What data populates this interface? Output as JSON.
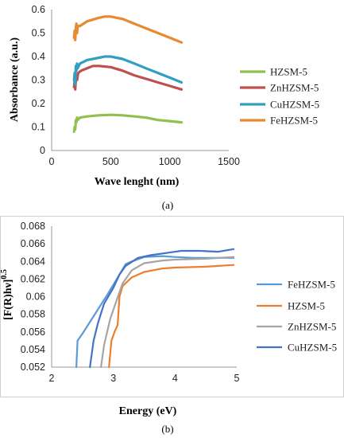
{
  "chart_data": [
    {
      "type": "line",
      "caption": "(a)",
      "xlabel": "Wave lenght (nm)",
      "ylabel": "Absorbance (a.u.)",
      "xlim": [
        0,
        1500
      ],
      "ylim": [
        0,
        0.6
      ],
      "xticks": [
        "0",
        "500",
        "1000",
        "1500"
      ],
      "yticks": [
        "0",
        "0.1",
        "0.2",
        "0.3",
        "0.4",
        "0.5",
        "0.6"
      ],
      "grid": false,
      "legend_position": "right",
      "series": [
        {
          "name": "HZSM-5",
          "color": "#92c050",
          "points": [
            [
              190,
              0.08
            ],
            [
              195,
              0.1
            ],
            [
              200,
              0.09
            ],
            [
              205,
              0.13
            ],
            [
              210,
              0.12
            ],
            [
              215,
              0.14
            ],
            [
              220,
              0.13
            ],
            [
              240,
              0.14
            ],
            [
              300,
              0.145
            ],
            [
              400,
              0.15
            ],
            [
              500,
              0.152
            ],
            [
              600,
              0.15
            ],
            [
              700,
              0.145
            ],
            [
              800,
              0.14
            ],
            [
              900,
              0.13
            ],
            [
              1000,
              0.125
            ],
            [
              1100,
              0.12
            ]
          ]
        },
        {
          "name": "ZnHZSM-5",
          "color": "#c0504d",
          "points": [
            [
              190,
              0.27
            ],
            [
              195,
              0.3
            ],
            [
              200,
              0.26
            ],
            [
              205,
              0.3
            ],
            [
              210,
              0.32
            ],
            [
              215,
              0.3
            ],
            [
              225,
              0.33
            ],
            [
              250,
              0.34
            ],
            [
              300,
              0.35
            ],
            [
              350,
              0.36
            ],
            [
              400,
              0.36
            ],
            [
              500,
              0.355
            ],
            [
              600,
              0.34
            ],
            [
              700,
              0.32
            ],
            [
              800,
              0.305
            ],
            [
              900,
              0.29
            ],
            [
              1000,
              0.275
            ],
            [
              1100,
              0.26
            ]
          ]
        },
        {
          "name": "CuHZSM-5",
          "color": "#31a0c0",
          "points": [
            [
              190,
              0.3
            ],
            [
              195,
              0.33
            ],
            [
              200,
              0.28
            ],
            [
              205,
              0.36
            ],
            [
              210,
              0.34
            ],
            [
              215,
              0.37
            ],
            [
              220,
              0.35
            ],
            [
              240,
              0.37
            ],
            [
              300,
              0.385
            ],
            [
              400,
              0.395
            ],
            [
              450,
              0.4
            ],
            [
              500,
              0.4
            ],
            [
              600,
              0.39
            ],
            [
              700,
              0.37
            ],
            [
              800,
              0.35
            ],
            [
              900,
              0.33
            ],
            [
              1000,
              0.31
            ],
            [
              1100,
              0.29
            ]
          ]
        },
        {
          "name": "FeHZSM-5",
          "color": "#e88a30",
          "points": [
            [
              190,
              0.48
            ],
            [
              195,
              0.51
            ],
            [
              200,
              0.47
            ],
            [
              205,
              0.52
            ],
            [
              210,
              0.54
            ],
            [
              215,
              0.5
            ],
            [
              220,
              0.53
            ],
            [
              240,
              0.53
            ],
            [
              300,
              0.55
            ],
            [
              400,
              0.565
            ],
            [
              450,
              0.57
            ],
            [
              500,
              0.57
            ],
            [
              600,
              0.56
            ],
            [
              700,
              0.54
            ],
            [
              800,
              0.52
            ],
            [
              900,
              0.5
            ],
            [
              1000,
              0.48
            ],
            [
              1100,
              0.46
            ]
          ]
        }
      ]
    },
    {
      "type": "line",
      "caption": "(b)",
      "xlabel": "Energy (eV)",
      "ylabel": "[F(R)hν]",
      "ylabel_sup": "0.5",
      "xlim": [
        2,
        5
      ],
      "ylim": [
        0.052,
        0.068
      ],
      "xticks": [
        "2",
        "3",
        "4",
        "5"
      ],
      "yticks": [
        "0.052",
        "0.054",
        "0.056",
        "0.058",
        "0.06",
        "0.062",
        "0.064",
        "0.066",
        "0.068"
      ],
      "grid": false,
      "legend_position": "right",
      "series": [
        {
          "name": "FeHZSM-5",
          "color": "#5b9bd5",
          "points": [
            [
              2.4,
              0.052
            ],
            [
              2.42,
              0.055
            ],
            [
              2.5,
              0.0558
            ],
            [
              2.7,
              0.058
            ],
            [
              2.9,
              0.0602
            ],
            [
              3.1,
              0.0625
            ],
            [
              3.2,
              0.0637
            ],
            [
              3.3,
              0.064
            ],
            [
              3.5,
              0.0645
            ],
            [
              3.8,
              0.0646
            ],
            [
              4.0,
              0.0645
            ],
            [
              4.3,
              0.0644
            ],
            [
              4.6,
              0.0644
            ],
            [
              4.95,
              0.0644
            ]
          ]
        },
        {
          "name": "HZSM-5",
          "color": "#ed7d31",
          "points": [
            [
              2.93,
              0.052
            ],
            [
              2.97,
              0.055
            ],
            [
              3.02,
              0.056
            ],
            [
              3.07,
              0.0568
            ],
            [
              3.1,
              0.06
            ],
            [
              3.15,
              0.0612
            ],
            [
              3.3,
              0.0622
            ],
            [
              3.5,
              0.0628
            ],
            [
              3.8,
              0.0632
            ],
            [
              4.0,
              0.0633
            ],
            [
              4.5,
              0.0634
            ],
            [
              4.95,
              0.0636
            ]
          ]
        },
        {
          "name": "ZnHZSM-5",
          "color": "#a5a5a5",
          "points": [
            [
              2.8,
              0.052
            ],
            [
              2.85,
              0.0545
            ],
            [
              2.95,
              0.0575
            ],
            [
              3.05,
              0.0595
            ],
            [
              3.15,
              0.0615
            ],
            [
              3.3,
              0.063
            ],
            [
              3.5,
              0.0638
            ],
            [
              3.8,
              0.0641
            ],
            [
              4.0,
              0.0642
            ],
            [
              4.5,
              0.0643
            ],
            [
              4.95,
              0.0645
            ]
          ]
        },
        {
          "name": "CuHZSM-5",
          "color": "#4472c4",
          "points": [
            [
              2.62,
              0.052
            ],
            [
              2.68,
              0.055
            ],
            [
              2.75,
              0.057
            ],
            [
              2.85,
              0.0592
            ],
            [
              3.0,
              0.061
            ],
            [
              3.1,
              0.0625
            ],
            [
              3.2,
              0.0635
            ],
            [
              3.4,
              0.0644
            ],
            [
              3.6,
              0.0647
            ],
            [
              3.9,
              0.065
            ],
            [
              4.1,
              0.0652
            ],
            [
              4.4,
              0.0652
            ],
            [
              4.7,
              0.0651
            ],
            [
              4.95,
              0.0654
            ]
          ]
        }
      ]
    }
  ]
}
